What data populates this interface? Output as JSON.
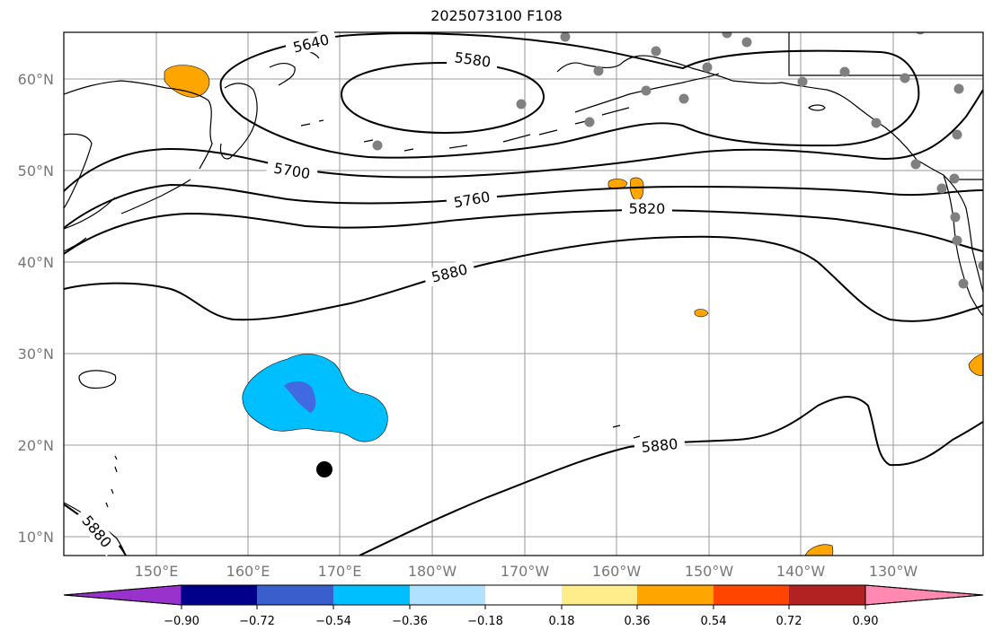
{
  "title": "2025073100 F108",
  "map": {
    "lat_labels": [
      "60°N",
      "50°N",
      "40°N",
      "30°N",
      "20°N",
      "10°N"
    ],
    "lon_labels": [
      "150°E",
      "160°E",
      "170°E",
      "180°W",
      "170°W",
      "160°W",
      "150°W",
      "140°W",
      "130°W"
    ],
    "contour_labels": [
      "5640",
      "5580",
      "5700",
      "5760",
      "5820",
      "5880",
      "5880",
      "5880"
    ],
    "gridline_color": "#999999",
    "coastline_color": "#000000",
    "station_color": "#808080",
    "storm_marker_color": "#000000"
  },
  "colorbar": {
    "ticks": [
      "−0.90",
      "−0.72",
      "−0.54",
      "−0.36",
      "−0.18",
      "0.18",
      "0.36",
      "0.54",
      "0.72",
      "0.90"
    ],
    "colors": [
      "#9932CC",
      "#00008B",
      "#3A5FCD",
      "#00BFFF",
      "#B0E2FF",
      "#FFFFFF",
      "#FFEC8B",
      "#FFA500",
      "#FF4500",
      "#B22222",
      "#FF89B0"
    ]
  },
  "anomaly_colors": {
    "blue_outer": "#00BFFF",
    "blue_inner": "#4169E1",
    "orange": "#FFA500"
  }
}
